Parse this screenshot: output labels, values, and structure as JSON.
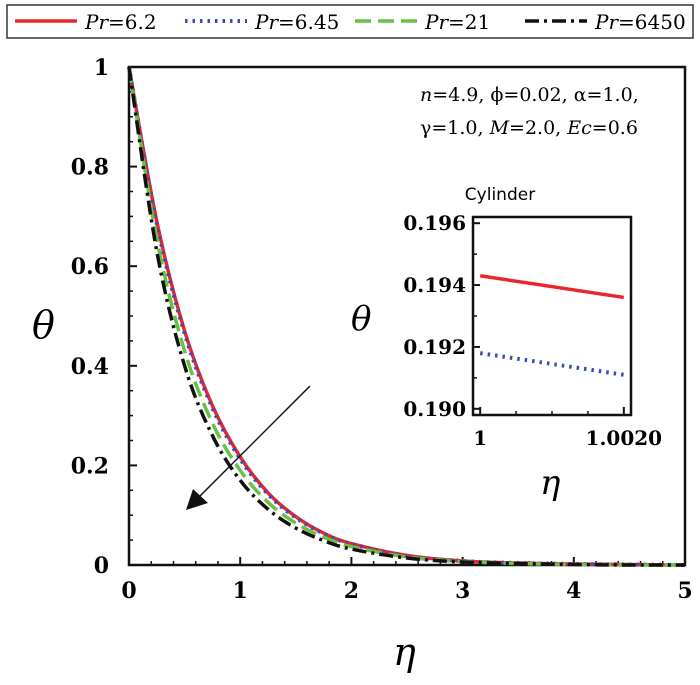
{
  "legend": {
    "entries": [
      {
        "var": "Pr",
        "value": "=6.2",
        "color": "#e8262b",
        "dash": "solid"
      },
      {
        "var": "Pr",
        "value": "=6.45",
        "color": "#3a4db5",
        "dash": "dot"
      },
      {
        "var": "Pr",
        "value": "=21",
        "color": "#6abf45",
        "dash": "dash"
      },
      {
        "var": "Pr",
        "value": "=6450",
        "color": "#111111",
        "dash": "dashdot"
      }
    ]
  },
  "params": {
    "line1_a": "n",
    "line1_b": "=4.9, ϕ=0.02, α=1.0,",
    "line2_a": "γ=1.0, ",
    "line2_b": "M",
    "line2_c": "=2.0, ",
    "line2_d": "Ec",
    "line2_e": "=0.6"
  },
  "inset": {
    "title": "Cylinder"
  },
  "chart_data": [
    {
      "type": "line",
      "xlabel": "η",
      "ylabel": "θ",
      "xlim": [
        0,
        5
      ],
      "ylim": [
        0,
        1
      ],
      "xticks": [
        "0",
        "1",
        "2",
        "3",
        "4",
        "5"
      ],
      "yticks": [
        "0",
        "0.2",
        "0.4",
        "0.6",
        "0.8",
        "1"
      ],
      "x": [
        0,
        0.25,
        0.5,
        0.75,
        1.0,
        1.25,
        1.5,
        1.75,
        2.0,
        2.5,
        3.0,
        3.5,
        4.0,
        4.5,
        5.0
      ],
      "series": [
        {
          "name": "Pr=6.2",
          "color": "#e8262b",
          "dash": "solid",
          "values": [
            1.0,
            0.69,
            0.47,
            0.32,
            0.217,
            0.145,
            0.097,
            0.064,
            0.043,
            0.019,
            0.008,
            0.004,
            0.002,
            0.001,
            0.0
          ]
        },
        {
          "name": "Pr=6.45",
          "color": "#3a4db5",
          "dash": "dot",
          "values": [
            1.0,
            0.685,
            0.465,
            0.315,
            0.213,
            0.142,
            0.095,
            0.063,
            0.042,
            0.018,
            0.008,
            0.004,
            0.002,
            0.001,
            0.0
          ]
        },
        {
          "name": "Pr=21",
          "color": "#6abf45",
          "dash": "dash",
          "values": [
            1.0,
            0.655,
            0.43,
            0.285,
            0.19,
            0.126,
            0.084,
            0.056,
            0.037,
            0.016,
            0.007,
            0.003,
            0.001,
            0.0,
            0.0
          ]
        },
        {
          "name": "Pr=6450",
          "color": "#111111",
          "dash": "dashdot",
          "values": [
            1.0,
            0.63,
            0.4,
            0.26,
            0.17,
            0.112,
            0.074,
            0.049,
            0.032,
            0.014,
            0.006,
            0.003,
            0.001,
            0.0,
            0.0
          ]
        }
      ]
    },
    {
      "type": "line",
      "title": "Cylinder",
      "xlabel": "η",
      "ylabel": "θ",
      "xlim": [
        0.9999,
        1.0021
      ],
      "ylim": [
        0.1898,
        0.1962
      ],
      "xticks": [
        "1",
        "1.0020"
      ],
      "yticks": [
        "0.190",
        "0.192",
        "0.194",
        "0.196"
      ],
      "x": [
        1.0,
        1.002
      ],
      "series": [
        {
          "name": "Pr=6.2",
          "color": "#e8262b",
          "dash": "solid",
          "values": [
            0.1943,
            0.1936
          ]
        },
        {
          "name": "Pr=6.45",
          "color": "#3a4db5",
          "dash": "dot",
          "values": [
            0.1918,
            0.1911
          ]
        }
      ]
    }
  ]
}
